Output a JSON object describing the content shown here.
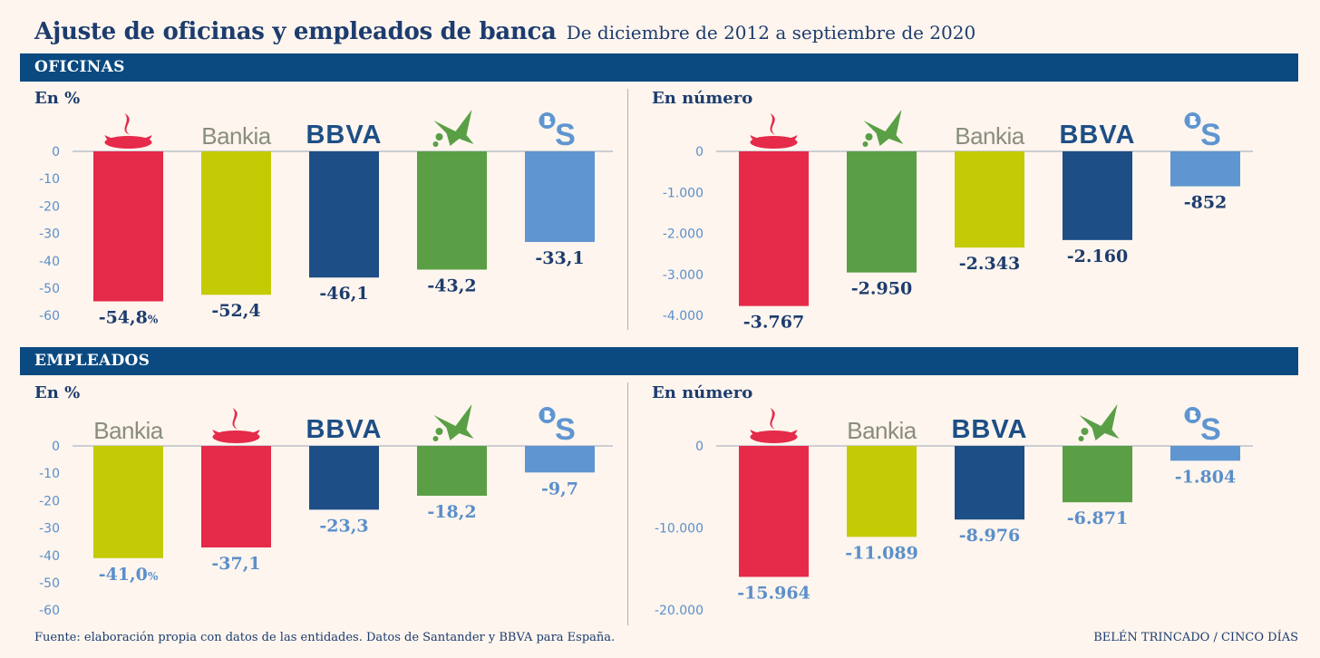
{
  "title": "Ajuste de oficinas y empleados de banca",
  "subtitle": "De diciembre de 2012 a septiembre de 2020",
  "sections": [
    {
      "label": "OFICINAS"
    },
    {
      "label": "EMPLEADOS"
    }
  ],
  "footer": {
    "source": "Fuente: elaboración propia con datos de las entidades. Datos de Santander y BBVA para España.",
    "credit": "BELÉN TRINCADO / CINCO DÍAS"
  },
  "colors": {
    "santander": "#e52a4a",
    "bankia": "#c4cb04",
    "bbva": "#1d4e86",
    "caixabank": "#5a9f46",
    "sabadell": "#5f95d0"
  },
  "brand_logos": {
    "bankia": "Bankia",
    "bbva": "BBVA"
  },
  "chart_data": [
    {
      "type": "bar",
      "section": "OFICINAS",
      "title": "En %",
      "categories": [
        "santander",
        "bankia",
        "bbva",
        "caixabank",
        "sabadell"
      ],
      "values": [
        -54.8,
        -52.4,
        -46.1,
        -43.2,
        -33.1
      ],
      "labels": [
        "-54,8",
        "-52,4",
        "-46,1",
        "-43,2",
        "-33,1"
      ],
      "first_label_unit": "%",
      "yticks": [
        "0",
        "-10",
        "-20",
        "-30",
        "-40",
        "-50",
        "-60"
      ],
      "ylim": [
        -60,
        0
      ],
      "label_color": "dark"
    },
    {
      "type": "bar",
      "section": "OFICINAS",
      "title": "En número",
      "categories": [
        "santander",
        "caixabank",
        "bankia",
        "bbva",
        "sabadell"
      ],
      "values": [
        -3767,
        -2950,
        -2343,
        -2160,
        -852
      ],
      "labels": [
        "-3.767",
        "-2.950",
        "-2.343",
        "-2.160",
        "-852"
      ],
      "first_label_unit": "",
      "yticks": [
        "0",
        "-1.000",
        "-2.000",
        "-3.000",
        "-4.000"
      ],
      "ylim": [
        -4000,
        0
      ],
      "label_color": "dark"
    },
    {
      "type": "bar",
      "section": "EMPLEADOS",
      "title": "En %",
      "categories": [
        "bankia",
        "santander",
        "bbva",
        "caixabank",
        "sabadell"
      ],
      "values": [
        -41.0,
        -37.1,
        -23.3,
        -18.2,
        -9.7
      ],
      "labels": [
        "-41,0",
        "-37,1",
        "-23,3",
        "-18,2",
        "-9,7"
      ],
      "first_label_unit": "%",
      "yticks": [
        "0",
        "-10",
        "-20",
        "-30",
        "-40",
        "-50",
        "-60"
      ],
      "ylim": [
        -60,
        0
      ],
      "label_color": "light"
    },
    {
      "type": "bar",
      "section": "EMPLEADOS",
      "title": "En número",
      "categories": [
        "santander",
        "bankia",
        "bbva",
        "caixabank",
        "sabadell"
      ],
      "values": [
        -15964,
        -11089,
        -8976,
        -6871,
        -1804
      ],
      "labels": [
        "-15.964",
        "-11.089",
        "-8.976",
        "-6.871",
        "-1.804"
      ],
      "first_label_unit": "",
      "yticks": [
        "0",
        "-10.000",
        "-20.000"
      ],
      "ylim": [
        -20000,
        0
      ],
      "label_color": "light"
    }
  ]
}
